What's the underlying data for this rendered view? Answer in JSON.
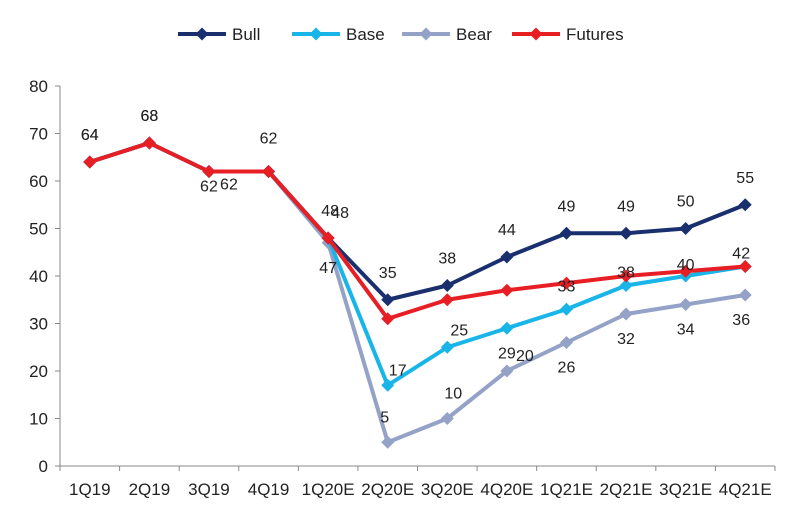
{
  "chart_data": {
    "type": "line",
    "title": "",
    "xlabel": "",
    "ylabel": "",
    "ylim": [
      0,
      80
    ],
    "yticks": [
      0,
      10,
      20,
      30,
      40,
      50,
      60,
      70,
      80
    ],
    "grid": false,
    "legend_position": "top-center",
    "categories": [
      "1Q19",
      "2Q19",
      "3Q19",
      "4Q19",
      "1Q20E",
      "2Q20E",
      "3Q20E",
      "4Q20E",
      "1Q21E",
      "2Q21E",
      "3Q21E",
      "4Q21E"
    ],
    "series": [
      {
        "name": "Bull",
        "color": "#1a2f6e",
        "marker": "diamond",
        "values": [
          64,
          68,
          62,
          62,
          48,
          35,
          38,
          44,
          49,
          49,
          50,
          55
        ],
        "labels": [
          "64",
          "68",
          "62",
          "62",
          "48",
          "35",
          "38",
          "44",
          "49",
          "49",
          "50",
          "55"
        ]
      },
      {
        "name": "Base",
        "color": "#19b4e8",
        "marker": "diamond",
        "values": [
          64,
          68,
          62,
          62,
          48,
          17,
          25,
          29,
          33,
          38,
          40,
          42
        ],
        "labels": [
          "",
          "",
          "",
          "",
          "",
          "17",
          "25",
          "29",
          "33",
          "38",
          "40",
          "42"
        ]
      },
      {
        "name": "Bear",
        "color": "#93a2c6",
        "marker": "diamond",
        "values": [
          64,
          68,
          62,
          62,
          47,
          5,
          10,
          20,
          26,
          32,
          34,
          36
        ],
        "labels": [
          "",
          "",
          "",
          "",
          "47",
          "5",
          "10",
          "20",
          "26",
          "32",
          "34",
          "36"
        ]
      },
      {
        "name": "Futures",
        "color": "#e81e25",
        "marker": "diamond",
        "values": [
          64,
          68,
          62,
          62,
          48,
          31,
          35,
          37,
          38.5,
          40,
          41,
          42
        ],
        "labels": [
          "64",
          "68",
          "62",
          "",
          "48",
          "",
          "",
          "",
          "",
          "",
          "",
          ""
        ]
      }
    ]
  }
}
